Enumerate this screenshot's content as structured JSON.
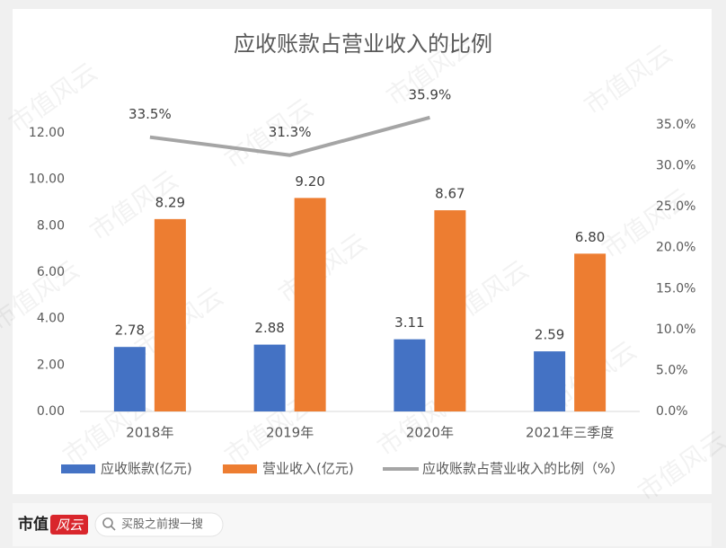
{
  "chart_data": {
    "type": "bar_line",
    "title": "应收账款占营业收入的比例",
    "categories": [
      "2018年",
      "2019年",
      "2020年",
      "2021年三季度"
    ],
    "series": [
      {
        "name": "应收账款(亿元)",
        "type": "bar",
        "color": "#4472c4",
        "values": [
          2.78,
          2.88,
          3.11,
          2.59
        ]
      },
      {
        "name": "营业收入(亿元)",
        "type": "bar",
        "color": "#ed7d31",
        "values": [
          8.29,
          9.2,
          8.67,
          6.8
        ],
        "value_labels": [
          "8.29",
          "9.20",
          "8.67",
          "6.80"
        ]
      },
      {
        "name": "应收账款占营业收入的比例（%）",
        "type": "line",
        "axis": "y2",
        "color": "#a5a5a5",
        "values": [
          33.5,
          31.3,
          35.9,
          null
        ],
        "value_labels": [
          "33.5%",
          "31.3%",
          "35.9%",
          null
        ]
      }
    ],
    "ylim": [
      0,
      12.35
    ],
    "yticks": [
      {
        "value": 0,
        "label": "0.00"
      },
      {
        "value": 2,
        "label": "2.00"
      },
      {
        "value": 4,
        "label": "4.00"
      },
      {
        "value": 6,
        "label": "6.00"
      },
      {
        "value": 8,
        "label": "8.00"
      },
      {
        "value": 10,
        "label": "10.00"
      },
      {
        "value": 12,
        "label": "12.00"
      }
    ],
    "y2lim": [
      0,
      35
    ],
    "y2ticks": [
      {
        "value": 0,
        "label": "0.0%"
      },
      {
        "value": 5,
        "label": "5.0%"
      },
      {
        "value": 10,
        "label": "10.0%"
      },
      {
        "value": 15,
        "label": "15.0%"
      },
      {
        "value": 20,
        "label": "20.0%"
      },
      {
        "value": 25,
        "label": "25.0%"
      },
      {
        "value": 30,
        "label": "30.0%"
      },
      {
        "value": 35,
        "label": "35.0%"
      }
    ],
    "grid": false,
    "legend": "bottom"
  },
  "watermark": "市值风云",
  "footer": {
    "logo_left": "市值",
    "logo_right": "风云",
    "search": "买股之前搜一搜"
  }
}
